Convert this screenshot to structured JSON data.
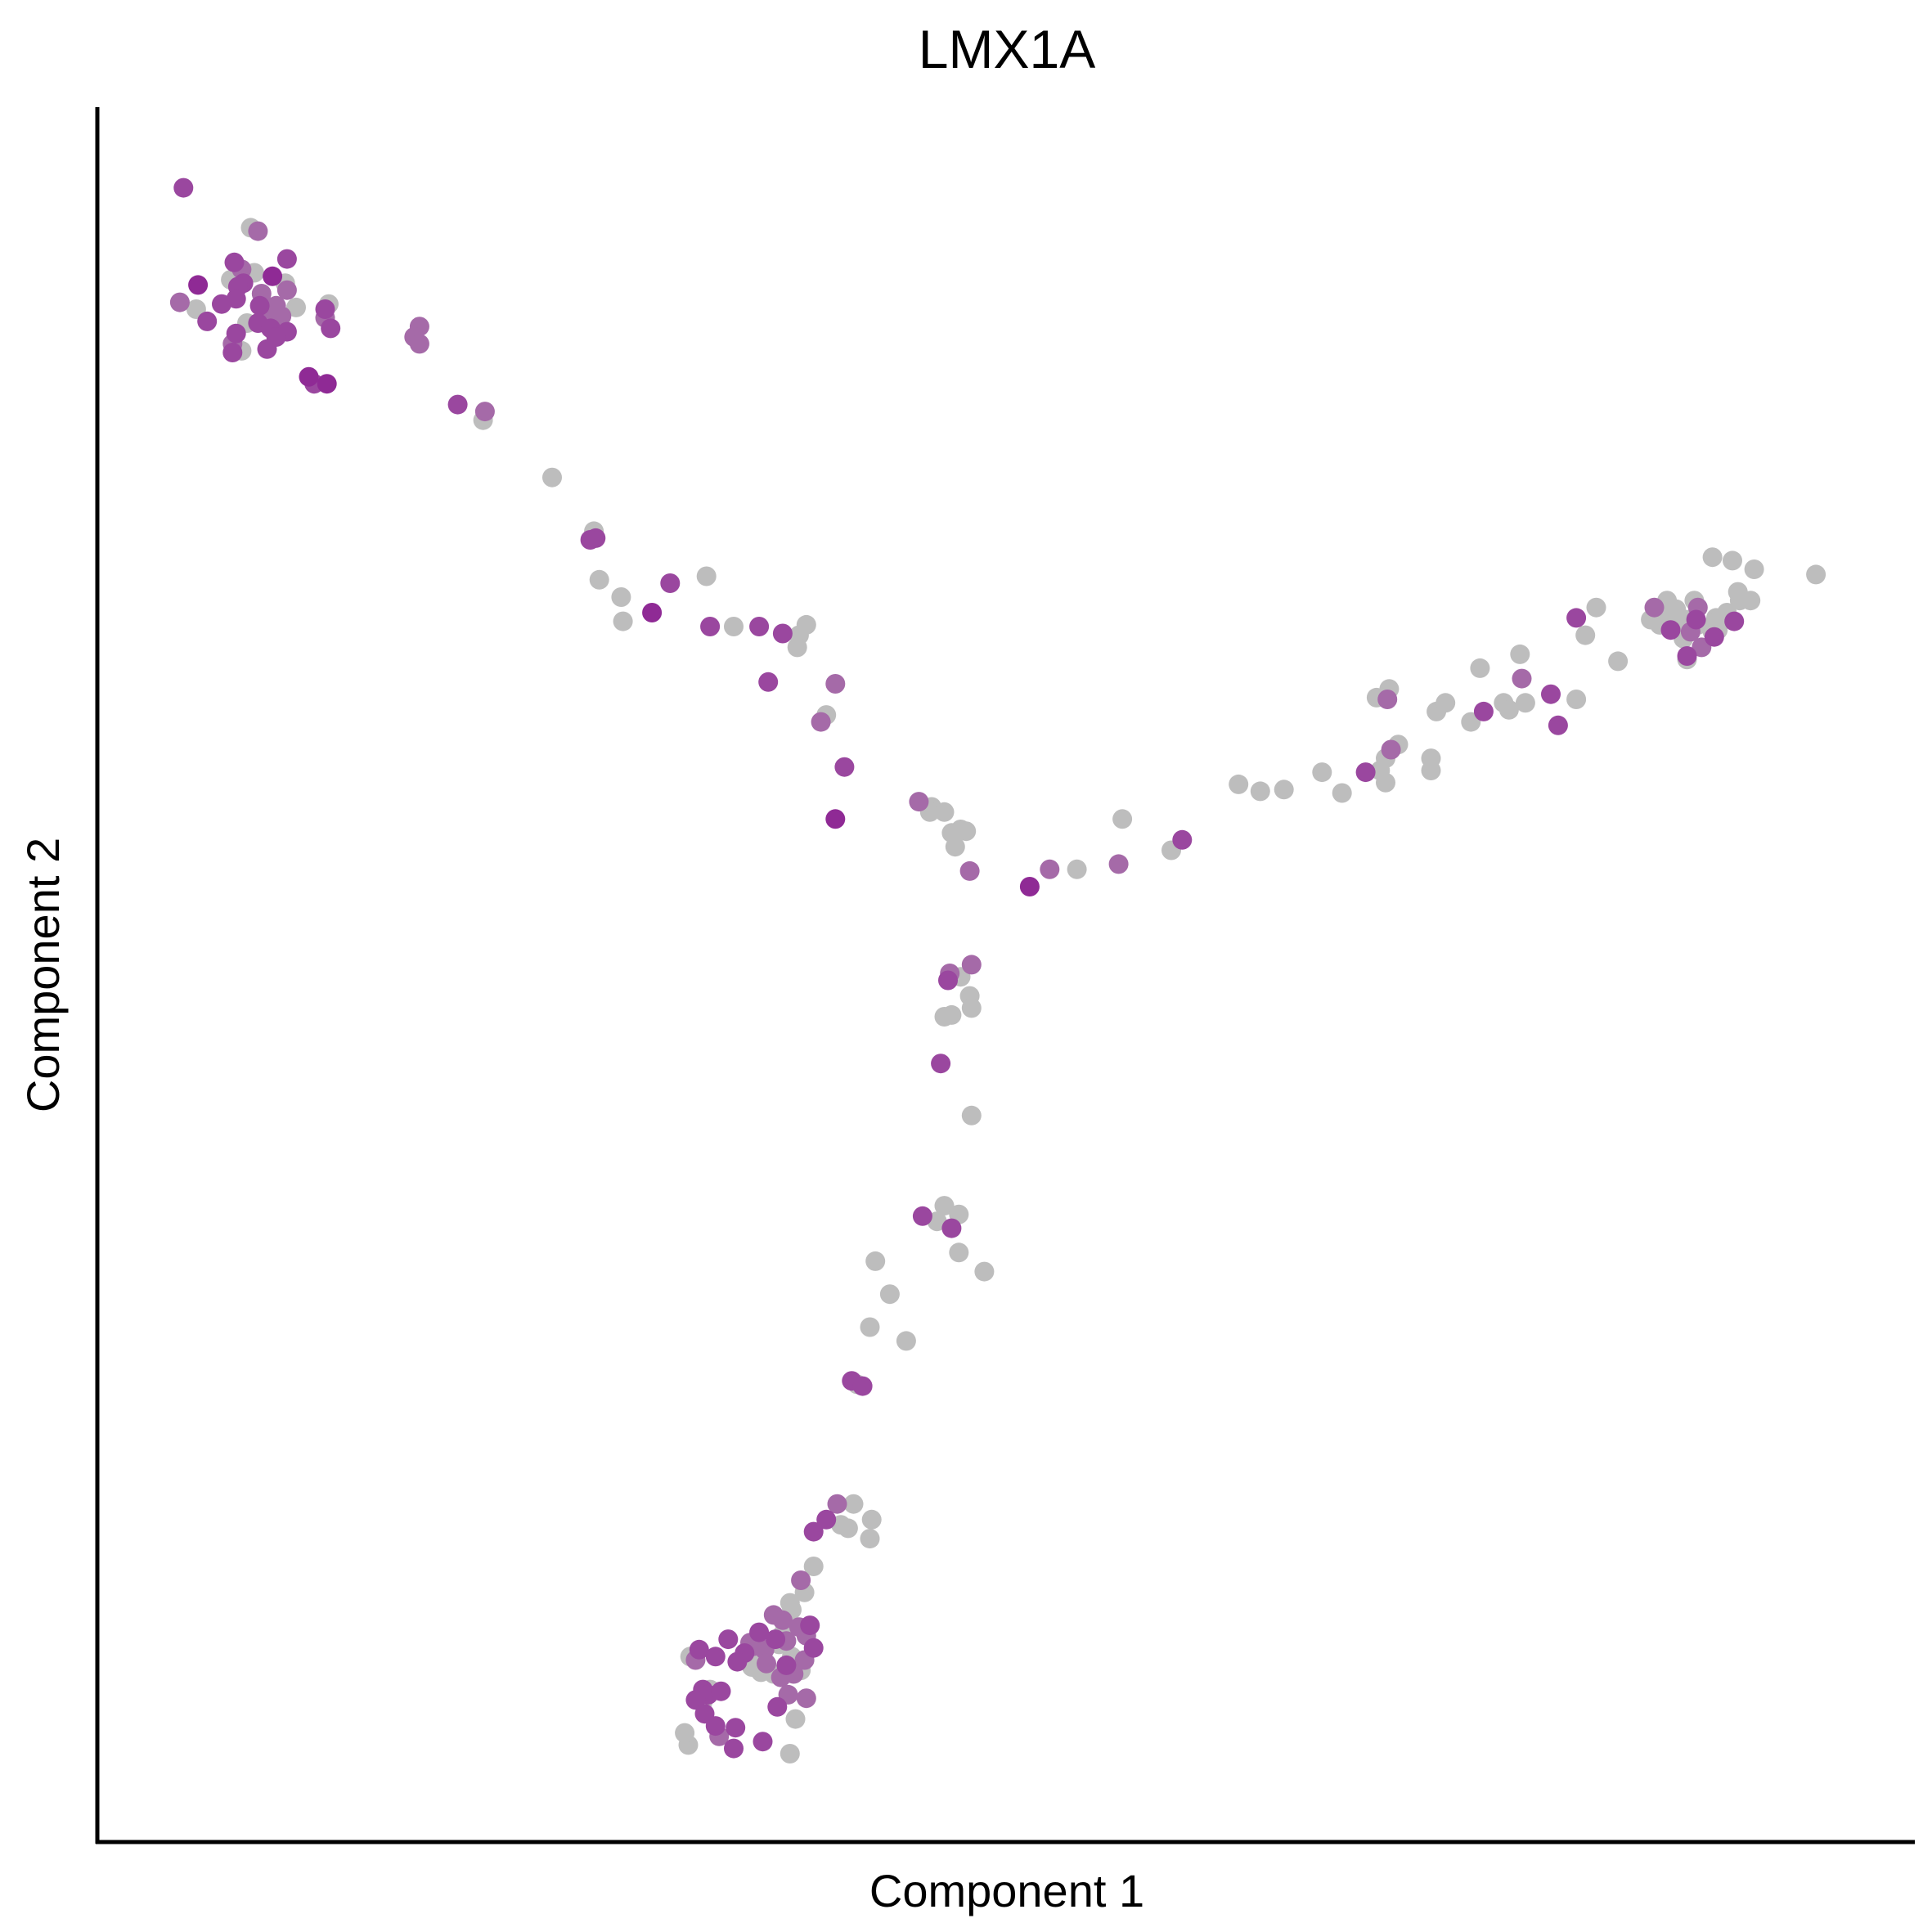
{
  "chart_data": {
    "type": "scatter",
    "title": "LMX1A",
    "xlabel": "Component 1",
    "ylabel": "Component 2",
    "xlim": [
      0,
      100
    ],
    "ylim": [
      0,
      100
    ],
    "grid": false,
    "axis_ticks": false,
    "legend": "none",
    "colors": {
      "gray": "#bdbdbd",
      "light": "#a56aa8",
      "mid": "#9a479f",
      "dark": "#8f2a95"
    },
    "points": [
      [
        4.7,
        95.3,
        "mid"
      ],
      [
        8.4,
        93.0,
        "gray"
      ],
      [
        8.8,
        92.8,
        "light"
      ],
      [
        10.4,
        91.2,
        "mid"
      ],
      [
        7.5,
        91.0,
        "mid"
      ],
      [
        7.9,
        90.6,
        "light"
      ],
      [
        8.6,
        90.4,
        "gray"
      ],
      [
        9.6,
        90.2,
        "dark"
      ],
      [
        7.3,
        90.0,
        "gray"
      ],
      [
        8.0,
        89.8,
        "mid"
      ],
      [
        10.3,
        89.8,
        "gray"
      ],
      [
        5.5,
        89.7,
        "dark"
      ],
      [
        7.7,
        89.6,
        "mid"
      ],
      [
        10.4,
        89.4,
        "light"
      ],
      [
        9.0,
        89.2,
        "light"
      ],
      [
        7.6,
        88.9,
        "mid"
      ],
      [
        4.5,
        88.7,
        "light"
      ],
      [
        6.8,
        88.6,
        "mid"
      ],
      [
        9.8,
        88.5,
        "light"
      ],
      [
        12.7,
        88.6,
        "gray"
      ],
      [
        5.4,
        88.3,
        "gray"
      ],
      [
        8.9,
        88.5,
        "mid"
      ],
      [
        10.9,
        88.4,
        "gray"
      ],
      [
        12.5,
        88.3,
        "mid"
      ],
      [
        9.2,
        88.0,
        "light"
      ],
      [
        10.1,
        87.9,
        "light"
      ],
      [
        12.5,
        87.8,
        "light"
      ],
      [
        6.0,
        87.6,
        "mid"
      ],
      [
        8.8,
        87.5,
        "mid"
      ],
      [
        9.5,
        87.2,
        "mid"
      ],
      [
        12.8,
        87.2,
        "mid"
      ],
      [
        8.2,
        87.5,
        "gray"
      ],
      [
        10.4,
        87.0,
        "mid"
      ],
      [
        7.6,
        86.9,
        "mid"
      ],
      [
        9.8,
        86.7,
        "mid"
      ],
      [
        7.4,
        86.3,
        "light"
      ],
      [
        9.3,
        86.0,
        "mid"
      ],
      [
        7.9,
        85.9,
        "gray"
      ],
      [
        7.4,
        85.8,
        "mid"
      ],
      [
        11.6,
        84.4,
        "dark"
      ],
      [
        11.9,
        84.0,
        "mid"
      ],
      [
        12.6,
        84.0,
        "dark"
      ],
      [
        17.7,
        87.3,
        "light"
      ],
      [
        17.4,
        86.7,
        "light"
      ],
      [
        17.7,
        86.3,
        "light"
      ],
      [
        19.8,
        82.8,
        "mid"
      ],
      [
        21.3,
        82.4,
        "light"
      ],
      [
        21.2,
        81.9,
        "gray"
      ],
      [
        25.0,
        78.6,
        "gray"
      ],
      [
        27.3,
        75.5,
        "gray"
      ],
      [
        27.4,
        75.1,
        "mid"
      ],
      [
        27.1,
        75.0,
        "mid"
      ],
      [
        27.6,
        72.7,
        "gray"
      ],
      [
        28.8,
        71.7,
        "gray"
      ],
      [
        28.9,
        70.3,
        "gray"
      ],
      [
        30.5,
        70.8,
        "dark"
      ],
      [
        31.5,
        72.5,
        "mid"
      ],
      [
        33.5,
        72.9,
        "gray"
      ],
      [
        33.7,
        70.0,
        "mid"
      ],
      [
        35.0,
        70.0,
        "gray"
      ],
      [
        36.4,
        70.0,
        "mid"
      ],
      [
        37.7,
        69.6,
        "mid"
      ],
      [
        39.0,
        70.1,
        "gray"
      ],
      [
        38.6,
        69.5,
        "gray"
      ],
      [
        38.5,
        68.8,
        "gray"
      ],
      [
        36.9,
        66.8,
        "mid"
      ],
      [
        40.6,
        66.7,
        "light"
      ],
      [
        40.1,
        64.9,
        "gray"
      ],
      [
        39.8,
        64.5,
        "light"
      ],
      [
        41.1,
        61.9,
        "mid"
      ],
      [
        40.6,
        58.9,
        "dark"
      ],
      [
        45.2,
        59.9,
        "light"
      ],
      [
        45.9,
        59.6,
        "gray"
      ],
      [
        45.8,
        59.3,
        "gray"
      ],
      [
        46.6,
        59.3,
        "gray"
      ],
      [
        47.5,
        58.3,
        "gray"
      ],
      [
        47.0,
        58.1,
        "gray"
      ],
      [
        47.8,
        58.2,
        "gray"
      ],
      [
        47.2,
        57.3,
        "gray"
      ],
      [
        48.0,
        55.9,
        "light"
      ],
      [
        51.3,
        55.0,
        "dark"
      ],
      [
        52.4,
        56.0,
        "light"
      ],
      [
        53.9,
        56.0,
        "gray"
      ],
      [
        56.2,
        56.3,
        "light"
      ],
      [
        56.4,
        58.9,
        "gray"
      ],
      [
        59.1,
        57.1,
        "gray"
      ],
      [
        59.7,
        57.7,
        "mid"
      ],
      [
        62.8,
        60.9,
        "gray"
      ],
      [
        64.0,
        60.5,
        "gray"
      ],
      [
        65.3,
        60.6,
        "gray"
      ],
      [
        67.4,
        61.6,
        "gray"
      ],
      [
        68.5,
        60.4,
        "gray"
      ],
      [
        69.8,
        61.6,
        "mid"
      ],
      [
        70.6,
        61.7,
        "gray"
      ],
      [
        70.9,
        62.4,
        "gray"
      ],
      [
        71.2,
        62.9,
        "light"
      ],
      [
        71.6,
        63.2,
        "gray"
      ],
      [
        70.9,
        61.0,
        "gray"
      ],
      [
        73.4,
        62.4,
        "gray"
      ],
      [
        73.4,
        61.7,
        "gray"
      ],
      [
        70.4,
        65.9,
        "gray"
      ],
      [
        71.1,
        66.4,
        "gray"
      ],
      [
        71.0,
        65.8,
        "light"
      ],
      [
        73.7,
        65.1,
        "gray"
      ],
      [
        74.2,
        65.6,
        "gray"
      ],
      [
        75.6,
        64.5,
        "gray"
      ],
      [
        76.3,
        65.1,
        "mid"
      ],
      [
        77.4,
        65.6,
        "gray"
      ],
      [
        77.7,
        65.2,
        "gray"
      ],
      [
        78.6,
        65.6,
        "gray"
      ],
      [
        76.1,
        67.6,
        "gray"
      ],
      [
        78.3,
        68.4,
        "gray"
      ],
      [
        78.4,
        67.0,
        "light"
      ],
      [
        80.0,
        66.1,
        "mid"
      ],
      [
        81.4,
        65.8,
        "gray"
      ],
      [
        80.4,
        64.3,
        "mid"
      ],
      [
        81.4,
        70.5,
        "mid"
      ],
      [
        82.5,
        71.1,
        "gray"
      ],
      [
        81.9,
        69.5,
        "gray"
      ],
      [
        83.7,
        68.0,
        "gray"
      ],
      [
        85.7,
        71.1,
        "light"
      ],
      [
        86.4,
        71.5,
        "gray"
      ],
      [
        86.9,
        71.0,
        "gray"
      ],
      [
        87.9,
        71.5,
        "gray"
      ],
      [
        86.8,
        70.2,
        "gray"
      ],
      [
        88.0,
        70.4,
        "mid"
      ],
      [
        86.9,
        70.7,
        "gray"
      ],
      [
        87.4,
        70.4,
        "gray"
      ],
      [
        87.7,
        69.7,
        "gray"
      ],
      [
        88.1,
        70.1,
        "gray"
      ],
      [
        89.1,
        70.5,
        "gray"
      ],
      [
        89.7,
        70.8,
        "gray"
      ],
      [
        89.0,
        70.2,
        "gray"
      ],
      [
        87.7,
        69.7,
        "light"
      ],
      [
        87.3,
        69.3,
        "gray"
      ],
      [
        86.5,
        70.8,
        "gray"
      ],
      [
        88.1,
        71.1,
        "light"
      ],
      [
        89.0,
        69.4,
        "mid"
      ],
      [
        88.9,
        69.7,
        "gray"
      ],
      [
        88.3,
        68.8,
        "light"
      ],
      [
        87.5,
        68.3,
        "mid"
      ],
      [
        87.5,
        68.1,
        "gray"
      ],
      [
        86.0,
        70.1,
        "gray"
      ],
      [
        85.5,
        70.4,
        "gray"
      ],
      [
        86.6,
        69.8,
        "mid"
      ],
      [
        89.2,
        69.8,
        "gray"
      ],
      [
        90.1,
        70.3,
        "mid"
      ],
      [
        90.4,
        71.5,
        "gray"
      ],
      [
        90.3,
        72.0,
        "gray"
      ],
      [
        91.0,
        71.5,
        "gray"
      ],
      [
        88.9,
        74.0,
        "gray"
      ],
      [
        90.0,
        73.8,
        "gray"
      ],
      [
        91.2,
        73.3,
        "gray"
      ],
      [
        94.6,
        73.0,
        "gray"
      ],
      [
        46.9,
        50.0,
        "light"
      ],
      [
        47.5,
        49.8,
        "gray"
      ],
      [
        46.8,
        49.6,
        "mid"
      ],
      [
        48.1,
        50.5,
        "light"
      ],
      [
        48.0,
        48.7,
        "gray"
      ],
      [
        46.6,
        47.5,
        "gray"
      ],
      [
        47.0,
        47.6,
        "gray"
      ],
      [
        48.1,
        48.0,
        "gray"
      ],
      [
        46.4,
        44.8,
        "mid"
      ],
      [
        48.1,
        41.8,
        "gray"
      ],
      [
        46.6,
        36.6,
        "gray"
      ],
      [
        47.4,
        36.1,
        "gray"
      ],
      [
        45.4,
        36.0,
        "mid"
      ],
      [
        46.2,
        35.7,
        "gray"
      ],
      [
        47.0,
        35.3,
        "mid"
      ],
      [
        48.8,
        32.8,
        "gray"
      ],
      [
        47.4,
        33.9,
        "gray"
      ],
      [
        42.8,
        33.4,
        "gray"
      ],
      [
        43.6,
        31.5,
        "gray"
      ],
      [
        42.5,
        29.6,
        "gray"
      ],
      [
        44.5,
        28.8,
        "gray"
      ],
      [
        41.5,
        26.5,
        "mid"
      ],
      [
        41.8,
        26.3,
        "gray"
      ],
      [
        42.1,
        26.2,
        "mid"
      ],
      [
        40.7,
        19.4,
        "light"
      ],
      [
        41.6,
        19.4,
        "gray"
      ],
      [
        40.9,
        18.2,
        "gray"
      ],
      [
        41.3,
        18.0,
        "gray"
      ],
      [
        42.6,
        18.5,
        "gray"
      ],
      [
        42.5,
        17.4,
        "gray"
      ],
      [
        40.1,
        18.5,
        "mid"
      ],
      [
        39.4,
        17.8,
        "mid"
      ],
      [
        39.4,
        15.8,
        "gray"
      ],
      [
        38.7,
        15.0,
        "light"
      ],
      [
        38.1,
        13.7,
        "gray"
      ],
      [
        37.2,
        13.0,
        "light"
      ],
      [
        38.9,
        14.3,
        "gray"
      ],
      [
        38.2,
        13.3,
        "gray"
      ],
      [
        37.7,
        12.7,
        "light"
      ],
      [
        36.4,
        12.0,
        "mid"
      ],
      [
        36.1,
        11.2,
        "light"
      ],
      [
        36.7,
        11.0,
        "light"
      ],
      [
        37.5,
        11.3,
        "gray"
      ],
      [
        37.7,
        11.9,
        "gray"
      ],
      [
        38.0,
        12.5,
        "gray"
      ],
      [
        38.6,
        12.3,
        "light"
      ],
      [
        39.2,
        12.4,
        "mid"
      ],
      [
        39.0,
        11.8,
        "light"
      ],
      [
        37.9,
        11.5,
        "light"
      ],
      [
        37.3,
        11.6,
        "mid"
      ],
      [
        36.8,
        10.2,
        "light"
      ],
      [
        36.3,
        10.8,
        "gray"
      ],
      [
        35.6,
        10.8,
        "mid"
      ],
      [
        35.9,
        11.4,
        "light"
      ],
      [
        34.7,
        11.6,
        "mid"
      ],
      [
        35.2,
        10.3,
        "mid"
      ],
      [
        36.5,
        9.7,
        "gray"
      ],
      [
        37.2,
        9.6,
        "gray"
      ],
      [
        37.6,
        9.4,
        "light"
      ],
      [
        38.3,
        9.6,
        "light"
      ],
      [
        38.9,
        10.4,
        "light"
      ],
      [
        37.9,
        10.1,
        "mid"
      ],
      [
        38.2,
        10.6,
        "gray"
      ],
      [
        38.7,
        9.8,
        "gray"
      ],
      [
        39.4,
        11.1,
        "mid"
      ],
      [
        34.0,
        10.6,
        "mid"
      ],
      [
        33.1,
        11.0,
        "mid"
      ],
      [
        32.9,
        10.4,
        "light"
      ],
      [
        32.6,
        10.6,
        "gray"
      ],
      [
        33.3,
        8.7,
        "mid"
      ],
      [
        33.6,
        8.4,
        "mid"
      ],
      [
        33.7,
        8.7,
        "gray"
      ],
      [
        32.9,
        8.1,
        "mid"
      ],
      [
        34.3,
        8.6,
        "mid"
      ],
      [
        34.0,
        6.6,
        "mid"
      ],
      [
        33.4,
        7.3,
        "mid"
      ],
      [
        33.3,
        8.0,
        "gray"
      ],
      [
        34.2,
        6.0,
        "light"
      ],
      [
        35.0,
        5.3,
        "mid"
      ],
      [
        38.1,
        5.0,
        "gray"
      ],
      [
        36.6,
        5.7,
        "mid"
      ],
      [
        38.4,
        7.0,
        "gray"
      ],
      [
        39.0,
        8.2,
        "light"
      ],
      [
        37.4,
        7.7,
        "mid"
      ],
      [
        38.0,
        8.4,
        "light"
      ],
      [
        32.5,
        5.5,
        "gray"
      ],
      [
        32.3,
        6.2,
        "gray"
      ],
      [
        36.0,
        10.0,
        "gray"
      ],
      [
        35.1,
        6.5,
        "mid"
      ]
    ]
  }
}
